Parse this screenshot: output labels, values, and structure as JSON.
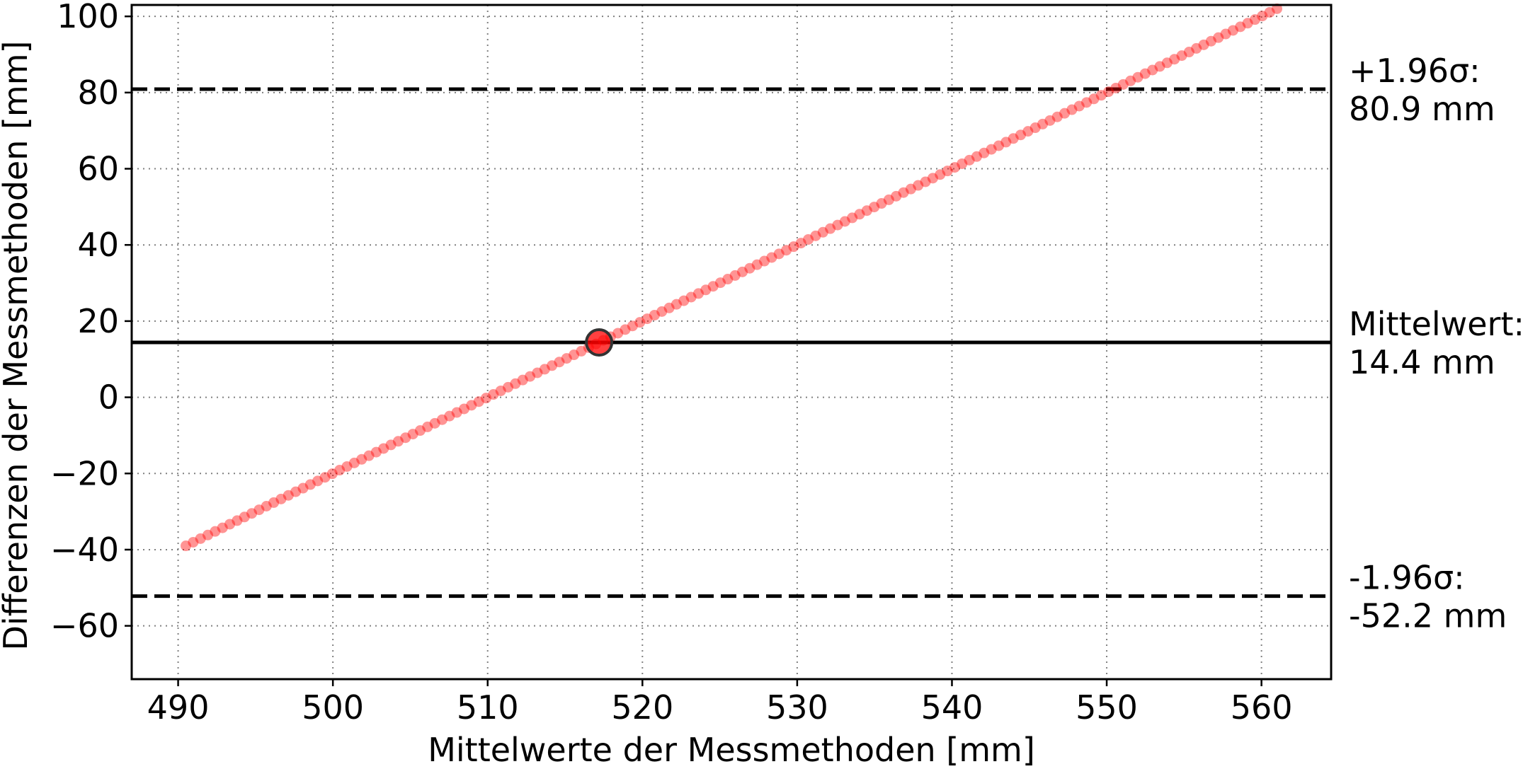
{
  "chart_data": {
    "type": "scatter",
    "title": "",
    "xlabel": "Mittelwerte der Messmethoden [mm]",
    "ylabel": "Differenzen der Messmethoden [mm]",
    "xlim": [
      487,
      564.5
    ],
    "ylim": [
      -74,
      103
    ],
    "xticks": [
      490,
      500,
      510,
      520,
      530,
      540,
      550,
      560
    ],
    "yticks": [
      -60,
      -40,
      -20,
      0,
      20,
      40,
      60,
      80,
      100
    ],
    "xtick_labels": [
      "490",
      "500",
      "510",
      "520",
      "530",
      "540",
      "550",
      "560"
    ],
    "ytick_labels": [
      "−60",
      "−40",
      "−20",
      "0",
      "20",
      "40",
      "60",
      "80",
      "100"
    ],
    "grid": true,
    "series": [
      {
        "color": "#ff0000",
        "x_start": 490.5,
        "x_end": 561.0,
        "point_count": 150,
        "slope": 2.0,
        "intercept": -1020
      }
    ],
    "highlight_point": {
      "x": 517.2,
      "y": 14.4,
      "color": "#ff0000"
    },
    "reference_lines": [
      {
        "y": 80.9,
        "style": "dashed",
        "label_line1": "+1.96σ:",
        "label_line2": "80.9 mm"
      },
      {
        "y": 14.4,
        "style": "solid",
        "label_line1": "Mittelwert:",
        "label_line2": "14.4 mm"
      },
      {
        "y": -52.2,
        "style": "dashed",
        "label_line1": "-1.96σ:",
        "label_line2": "-52.2 mm"
      }
    ]
  }
}
